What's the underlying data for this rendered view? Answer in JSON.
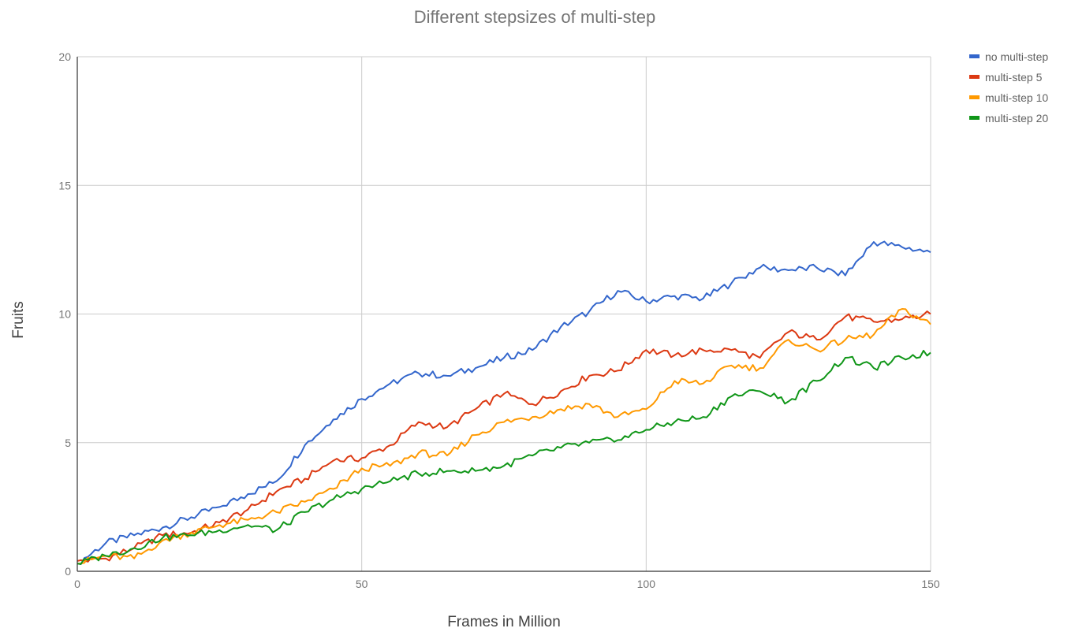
{
  "chart_data": {
    "type": "line",
    "title": "Different stepsizes of multi-step",
    "xlabel": "Frames in Million",
    "ylabel": "Fruits",
    "xlim": [
      0,
      150
    ],
    "ylim": [
      0,
      20
    ],
    "xticks": [
      "0",
      "50",
      "100",
      "150"
    ],
    "yticks": [
      "0",
      "5",
      "10",
      "15",
      "20"
    ],
    "grid": true,
    "legend_position": "right-top",
    "series": [
      {
        "name": "no multi-step",
        "color": "#3366cc",
        "x": [
          0,
          5,
          10,
          15,
          20,
          25,
          30,
          35,
          40,
          45,
          50,
          55,
          60,
          65,
          70,
          75,
          80,
          85,
          90,
          95,
          100,
          105,
          110,
          115,
          120,
          125,
          130,
          135,
          140,
          145,
          150
        ],
        "y": [
          0.3,
          1.1,
          1.4,
          1.7,
          2.1,
          2.5,
          3.0,
          3.5,
          4.9,
          5.9,
          6.7,
          7.3,
          7.7,
          7.6,
          7.9,
          8.3,
          8.6,
          9.5,
          10.1,
          10.9,
          10.5,
          10.7,
          10.6,
          11.2,
          11.8,
          11.7,
          11.8,
          11.5,
          12.8,
          12.6,
          12.4
        ]
      },
      {
        "name": "multi-step 5",
        "color": "#dc3912",
        "x": [
          0,
          5,
          10,
          15,
          20,
          25,
          30,
          35,
          40,
          45,
          50,
          55,
          60,
          65,
          70,
          75,
          80,
          85,
          90,
          95,
          100,
          105,
          110,
          115,
          120,
          125,
          130,
          135,
          140,
          145,
          150
        ],
        "y": [
          0.4,
          0.5,
          0.9,
          1.4,
          1.5,
          1.9,
          2.4,
          3.1,
          3.6,
          4.3,
          4.4,
          4.9,
          5.8,
          5.6,
          6.3,
          6.9,
          6.5,
          7.0,
          7.6,
          7.8,
          8.6,
          8.4,
          8.6,
          8.6,
          8.3,
          9.3,
          9.0,
          9.9,
          9.7,
          9.8,
          10.0
        ]
      },
      {
        "name": "multi-step 10",
        "color": "#ff9900",
        "x": [
          0,
          5,
          10,
          15,
          20,
          25,
          30,
          35,
          40,
          45,
          50,
          55,
          60,
          65,
          70,
          75,
          80,
          85,
          90,
          95,
          100,
          105,
          110,
          115,
          120,
          125,
          130,
          135,
          140,
          145,
          150
        ],
        "y": [
          0.3,
          0.6,
          0.5,
          1.2,
          1.5,
          1.8,
          2.0,
          2.3,
          2.7,
          3.2,
          4.0,
          4.1,
          4.6,
          4.5,
          5.3,
          5.8,
          6.0,
          6.3,
          6.5,
          6.0,
          6.3,
          7.4,
          7.3,
          8.0,
          7.9,
          9.0,
          8.6,
          9.0,
          9.2,
          10.2,
          9.6
        ]
      },
      {
        "name": "multi-step 20",
        "color": "#109618",
        "x": [
          0,
          5,
          10,
          15,
          20,
          25,
          30,
          35,
          40,
          45,
          50,
          55,
          60,
          65,
          70,
          75,
          80,
          85,
          90,
          95,
          100,
          105,
          110,
          115,
          120,
          125,
          130,
          135,
          140,
          145,
          150
        ],
        "y": [
          0.3,
          0.6,
          0.9,
          1.3,
          1.4,
          1.6,
          1.8,
          1.6,
          2.3,
          2.8,
          3.2,
          3.5,
          3.8,
          3.9,
          3.9,
          4.1,
          4.5,
          4.8,
          5.0,
          5.1,
          5.5,
          5.8,
          6.0,
          6.8,
          7.0,
          6.6,
          7.4,
          8.3,
          7.9,
          8.3,
          8.5
        ]
      }
    ]
  }
}
